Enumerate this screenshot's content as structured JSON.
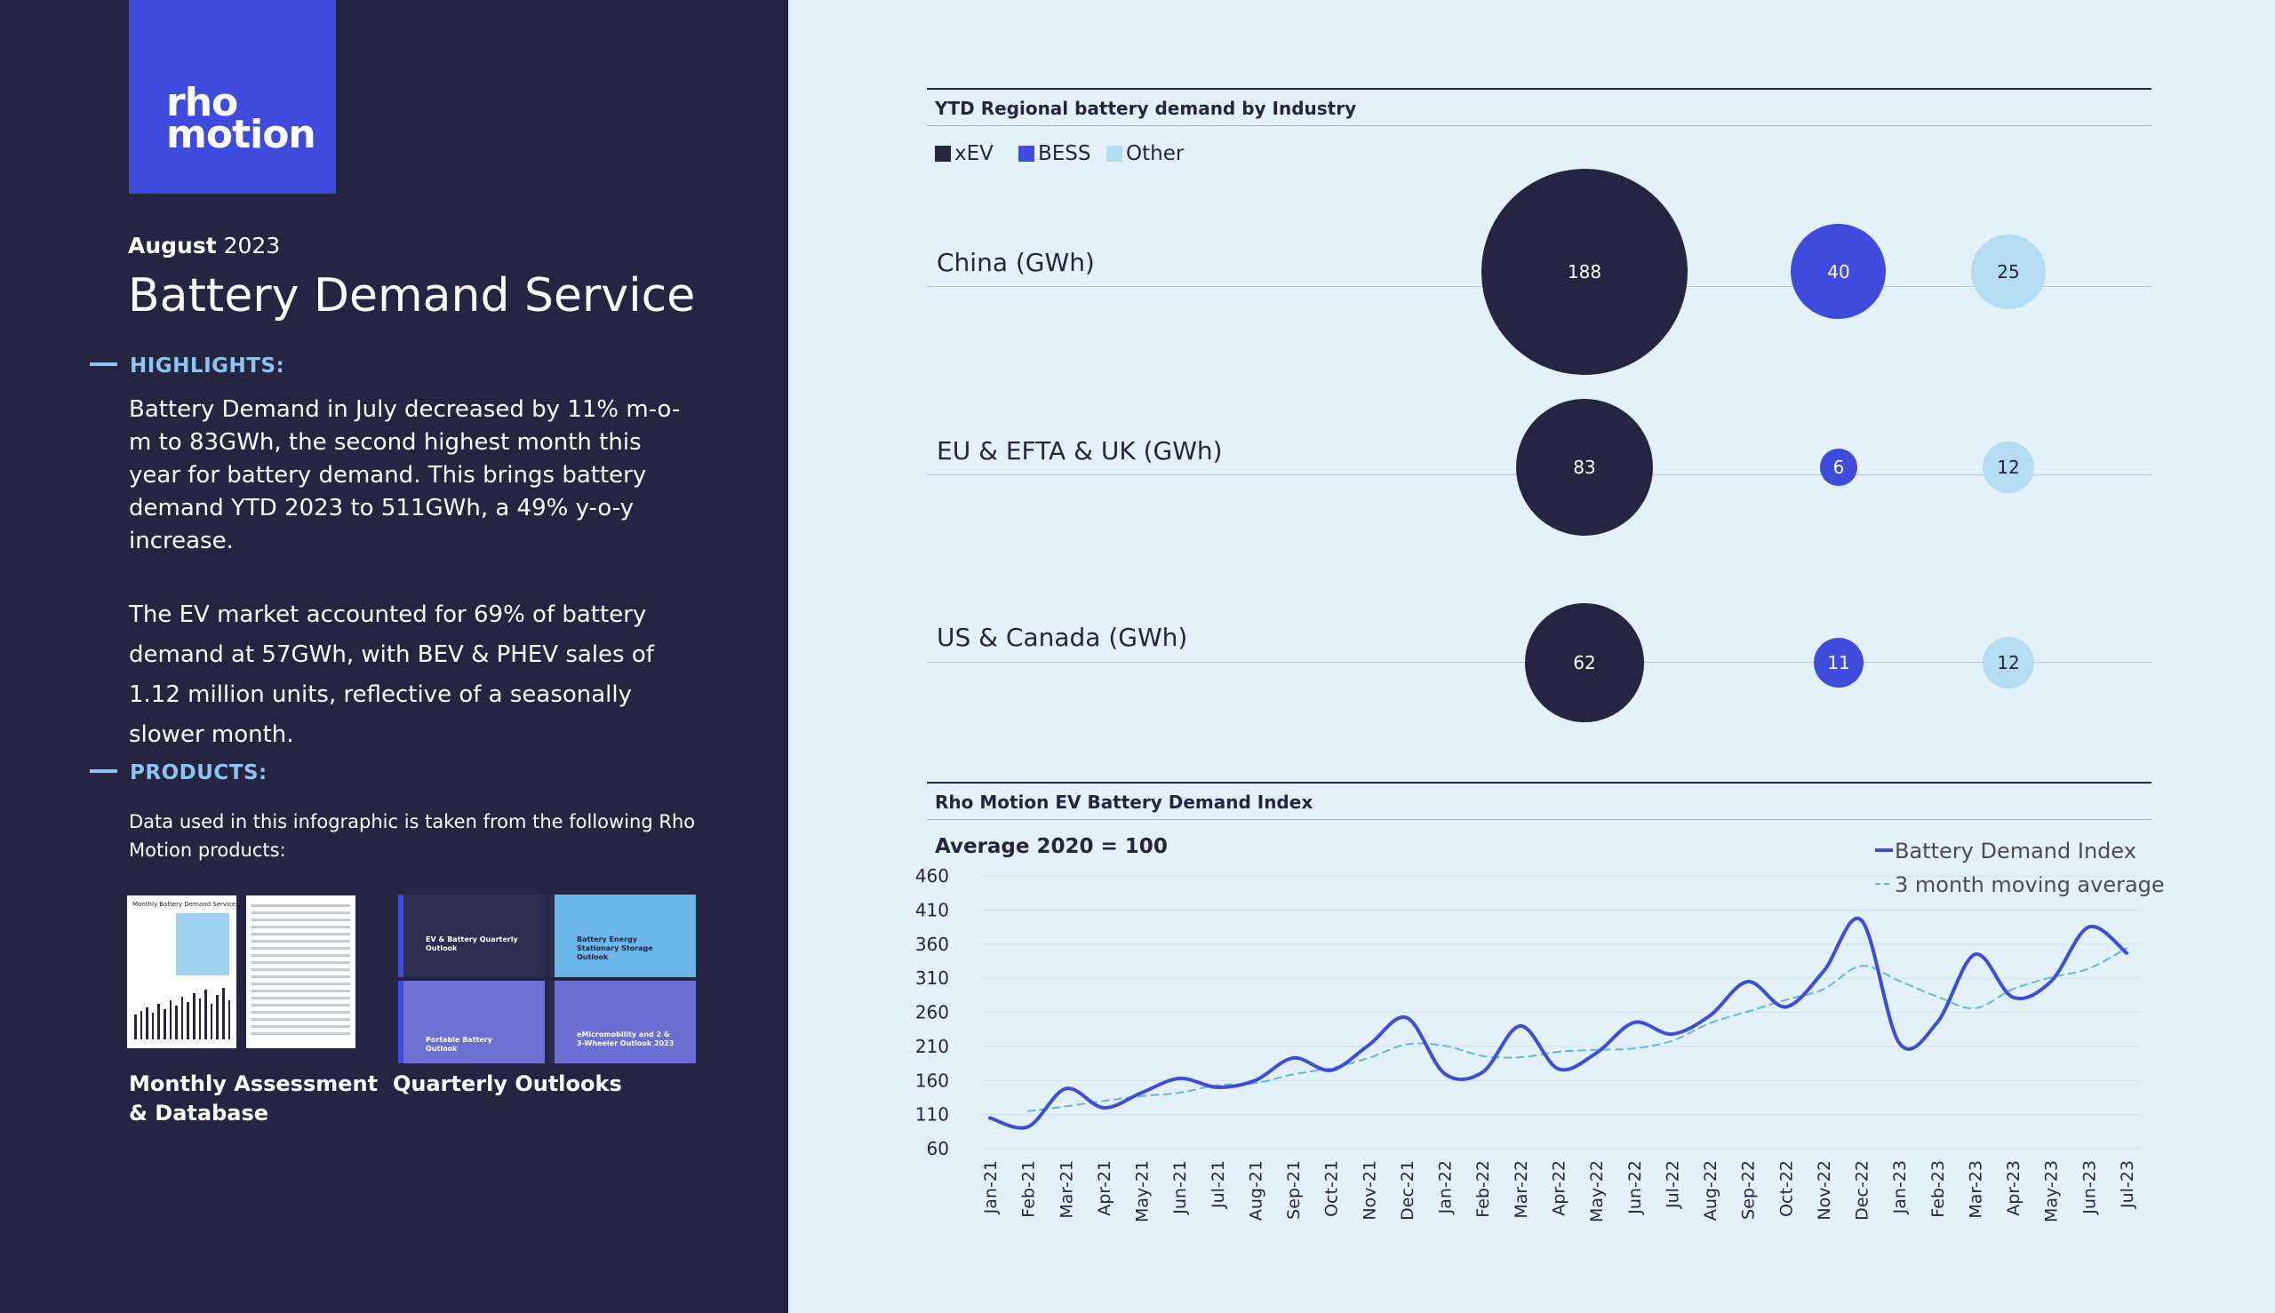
{
  "brand": {
    "logo_text": "rho\nmotion",
    "accent": "#3f4bdc",
    "dark": "#252541",
    "light_blue": "#b4dcf2"
  },
  "header": {
    "date_month": "August",
    "date_year": "2023",
    "title": "Battery Demand Service"
  },
  "highlights": {
    "heading": "HIGHLIGHTS:",
    "paragraph1": "Battery Demand in July decreased by 11% m-o-m to 83GWh, the second highest month this year for battery demand. This brings battery demand YTD 2023 to 511GWh, a 49% y-o-y increase.",
    "paragraph2": "The EV market accounted for 69% of battery demand at 57GWh, with BEV & PHEV sales of 1.12 million units, reflective of a seasonally slower month."
  },
  "products": {
    "heading": "PRODUCTS:",
    "intro": "Data used in this infographic is taken from the following Rho Motion products:",
    "caption_monthly": "Monthly Assessment & Database",
    "caption_quarterly": "Quarterly Outlooks",
    "thumb_ma_title": "Monthly Battery Demand Service",
    "thumb_q1": "EV & Battery Quarterly Outlook",
    "thumb_q2": "Battery Energy Stationary Storage Outlook",
    "thumb_q3": "Portable Battery Outlook",
    "thumb_q4": "eMicromobility and 2 & 3-Wheeler Outlook 2023"
  },
  "chart_data": [
    {
      "type": "bubble",
      "title": "YTD Regional battery demand by Industry",
      "legend": [
        {
          "name": "xEV",
          "color": "#252541"
        },
        {
          "name": "BESS",
          "color": "#3f4bdc"
        },
        {
          "name": "Other",
          "color": "#b4dcf2"
        }
      ],
      "rows": [
        {
          "region": "China (GWh)",
          "values": [
            188,
            40,
            25
          ]
        },
        {
          "region": "EU & EFTA & UK (GWh)",
          "values": [
            83,
            6,
            12
          ]
        },
        {
          "region": "US & Canada (GWh)",
          "values": [
            62,
            11,
            12
          ]
        }
      ]
    },
    {
      "type": "line",
      "title": "Rho Motion EV Battery Demand Index",
      "subtitle": "Average 2020 = 100",
      "x": [
        "Jan-21",
        "Feb-21",
        "Mar-21",
        "Apr-21",
        "May-21",
        "Jun-21",
        "Jul-21",
        "Aug-21",
        "Sep-21",
        "Oct-21",
        "Nov-21",
        "Dec-21",
        "Jan-22",
        "Feb-22",
        "Mar-22",
        "Apr-22",
        "May-22",
        "Jun-22",
        "Jul-22",
        "Aug-22",
        "Sep-22",
        "Oct-22",
        "Nov-22",
        "Dec-22",
        "Jan-23",
        "Feb-23",
        "Mar-23",
        "Apr-23",
        "May-23",
        "Jun-23",
        "Jul-23"
      ],
      "yticks": [
        60,
        110,
        160,
        210,
        260,
        310,
        360,
        410,
        460
      ],
      "ylim": [
        60,
        460
      ],
      "series": [
        {
          "name": "Battery Demand Index",
          "color": "#3f4bdc",
          "dashed": false,
          "values": [
            105,
            92,
            148,
            120,
            142,
            163,
            150,
            160,
            193,
            175,
            212,
            252,
            170,
            172,
            240,
            177,
            200,
            245,
            228,
            255,
            305,
            268,
            320,
            395,
            215,
            245,
            345,
            282,
            305,
            385,
            347
          ]
        },
        {
          "name": "3 month moving average",
          "color": "#6ab3e0",
          "dashed": true,
          "values": [
            null,
            115,
            122,
            130,
            137,
            142,
            153,
            156,
            169,
            178,
            193,
            213,
            211,
            196,
            194,
            202,
            205,
            207,
            218,
            244,
            261,
            278,
            294,
            328,
            306,
            283,
            266,
            294,
            311,
            324,
            354
          ]
        }
      ]
    }
  ]
}
